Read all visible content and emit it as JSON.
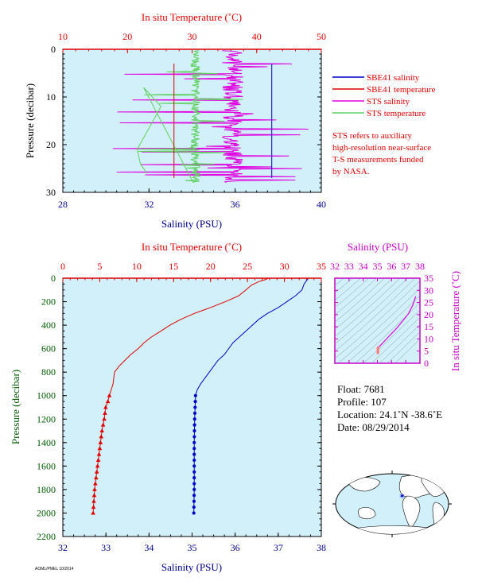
{
  "chart_data": [
    {
      "type": "line",
      "title": "",
      "top_xlabel": "In situ Temperature (˚C)",
      "top_xticks": [
        "10",
        "20",
        "30",
        "40",
        "50"
      ],
      "top_xlim": [
        10,
        50
      ],
      "bottom_xlabel": "Salinity (PSU)",
      "bottom_xticks": [
        "28",
        "32",
        "36",
        "40"
      ],
      "bottom_xlim": [
        28,
        40
      ],
      "ylabel": "Pressure (decibar)",
      "yticks": [
        "0",
        "10",
        "20",
        "30"
      ],
      "ylim": [
        30,
        0
      ],
      "legend_placement": "right",
      "legend": [
        {
          "name": "SBE41 salinity",
          "color": "#0000c8"
        },
        {
          "name": "SBE41 temperature",
          "color": "#e00000"
        },
        {
          "name": "STS salinity",
          "color": "#e000e0"
        },
        {
          "name": "STS temperature",
          "color": "#60d060"
        }
      ],
      "note": [
        "STS refers to auxiliary",
        "high-resolution near-surface",
        "T-S measurements funded",
        "by NASA."
      ],
      "series": [
        {
          "name": "SBE41 salinity",
          "x": [
            37.7,
            37.7,
            37.7
          ],
          "y": [
            3,
            16,
            27
          ]
        },
        {
          "name": "SBE41 temperature",
          "x": [
            27.2,
            27.2,
            27.2
          ],
          "y": [
            3,
            16,
            27
          ]
        },
        {
          "name": "STS salinity",
          "x_range": [
            29.5,
            39.4
          ],
          "y_range": [
            0.3,
            28
          ]
        },
        {
          "name": "STS temperature",
          "x_range": [
            21,
            38.3
          ],
          "y_range": [
            0.3,
            28
          ]
        }
      ]
    },
    {
      "type": "line",
      "title": "",
      "top_xlabel": "In situ Temperature (˚C)",
      "top_xticks": [
        "0",
        "5",
        "10",
        "15",
        "20",
        "25",
        "30",
        "35"
      ],
      "top_xlim": [
        0,
        35
      ],
      "bottom_xlabel": "Salinity (PSU)",
      "bottom_xticks": [
        "32",
        "33",
        "34",
        "35",
        "36",
        "37",
        "38"
      ],
      "bottom_xlim": [
        32,
        38
      ],
      "ylabel": "Pressure (decibar)",
      "yticks": [
        "0",
        "200",
        "400",
        "600",
        "800",
        "1000",
        "1200",
        "1400",
        "1600",
        "1800",
        "2000",
        "2200"
      ],
      "ylim": [
        2200,
        0
      ],
      "series": [
        {
          "name": "Temperature",
          "color": "#e00000",
          "x": [
            27.8,
            27.5,
            26.5,
            25.5,
            24.8,
            23.8,
            22.0,
            20.0,
            17.8,
            16.0,
            14.5,
            13.3,
            12.0,
            11.0,
            10.2,
            9.2,
            8.4,
            7.6,
            7.0,
            6.8,
            6.3,
            6.1,
            5.8,
            5.6,
            5.3,
            5.1,
            4.9,
            4.7,
            4.5,
            4.3,
            4.1
          ],
          "y": [
            0,
            10,
            30,
            60,
            100,
            150,
            200,
            250,
            300,
            350,
            400,
            450,
            500,
            550,
            600,
            650,
            700,
            750,
            800,
            900,
            1000,
            1050,
            1100,
            1200,
            1300,
            1400,
            1500,
            1600,
            1700,
            1800,
            2000
          ],
          "marker_from_y": 1000,
          "marker": "triangle"
        },
        {
          "name": "Salinity",
          "color": "#0000c8",
          "x": [
            37.7,
            37.6,
            37.55,
            37.4,
            37.2,
            37.0,
            36.75,
            36.55,
            36.4,
            36.25,
            36.1,
            35.95,
            35.85,
            35.75,
            35.6,
            35.5,
            35.4,
            35.3,
            35.2,
            35.12,
            35.08,
            35.07,
            35.06,
            35.05,
            35.05,
            35.05,
            35.04
          ],
          "y": [
            0,
            50,
            100,
            150,
            200,
            250,
            300,
            350,
            400,
            450,
            500,
            550,
            600,
            650,
            700,
            750,
            800,
            850,
            900,
            950,
            1000,
            1100,
            1200,
            1400,
            1600,
            1800,
            2000
          ],
          "marker_from_y": 1000,
          "marker": "circle"
        }
      ]
    },
    {
      "type": "scatter",
      "title": "",
      "top_xlabel": "Salinity (PSU)",
      "top_xticks": [
        "32",
        "33",
        "34",
        "35",
        "36",
        "37",
        "38"
      ],
      "top_xlim": [
        32,
        38
      ],
      "right_ylabel": "In situ Temperature (˚C)",
      "yticks": [
        "0",
        "5",
        "10",
        "15",
        "20",
        "25",
        "30",
        "35"
      ],
      "ylim": [
        0,
        35
      ],
      "series": [
        {
          "name": "T-S",
          "color": "#e000e0",
          "x": [
            37.7,
            37.5,
            37.2,
            36.8,
            36.3,
            35.8,
            35.4,
            35.15,
            35.05,
            35.05
          ],
          "y": [
            27.5,
            24.0,
            20.5,
            17.5,
            14.0,
            11.0,
            8.5,
            7.0,
            6.0,
            4.1
          ]
        }
      ]
    }
  ],
  "float_info": {
    "float": "Float: 7681",
    "profile": "Profile: 107",
    "location": "Location: 24.1˚N -38.6˚E",
    "date": "Date: 08/29/2014"
  },
  "map": {
    "marker_lat": 24.1,
    "marker_lon": -38.6,
    "marker_color": "#0000ff"
  },
  "footer": "AOML/PMEL 10/2014",
  "colors": {
    "plot_bg": "#d2f0fa",
    "temperature": "#e00000",
    "salinity_axis": "#00008c",
    "ts_axis": "#c800c8",
    "pressure_axis": "#005a00"
  }
}
